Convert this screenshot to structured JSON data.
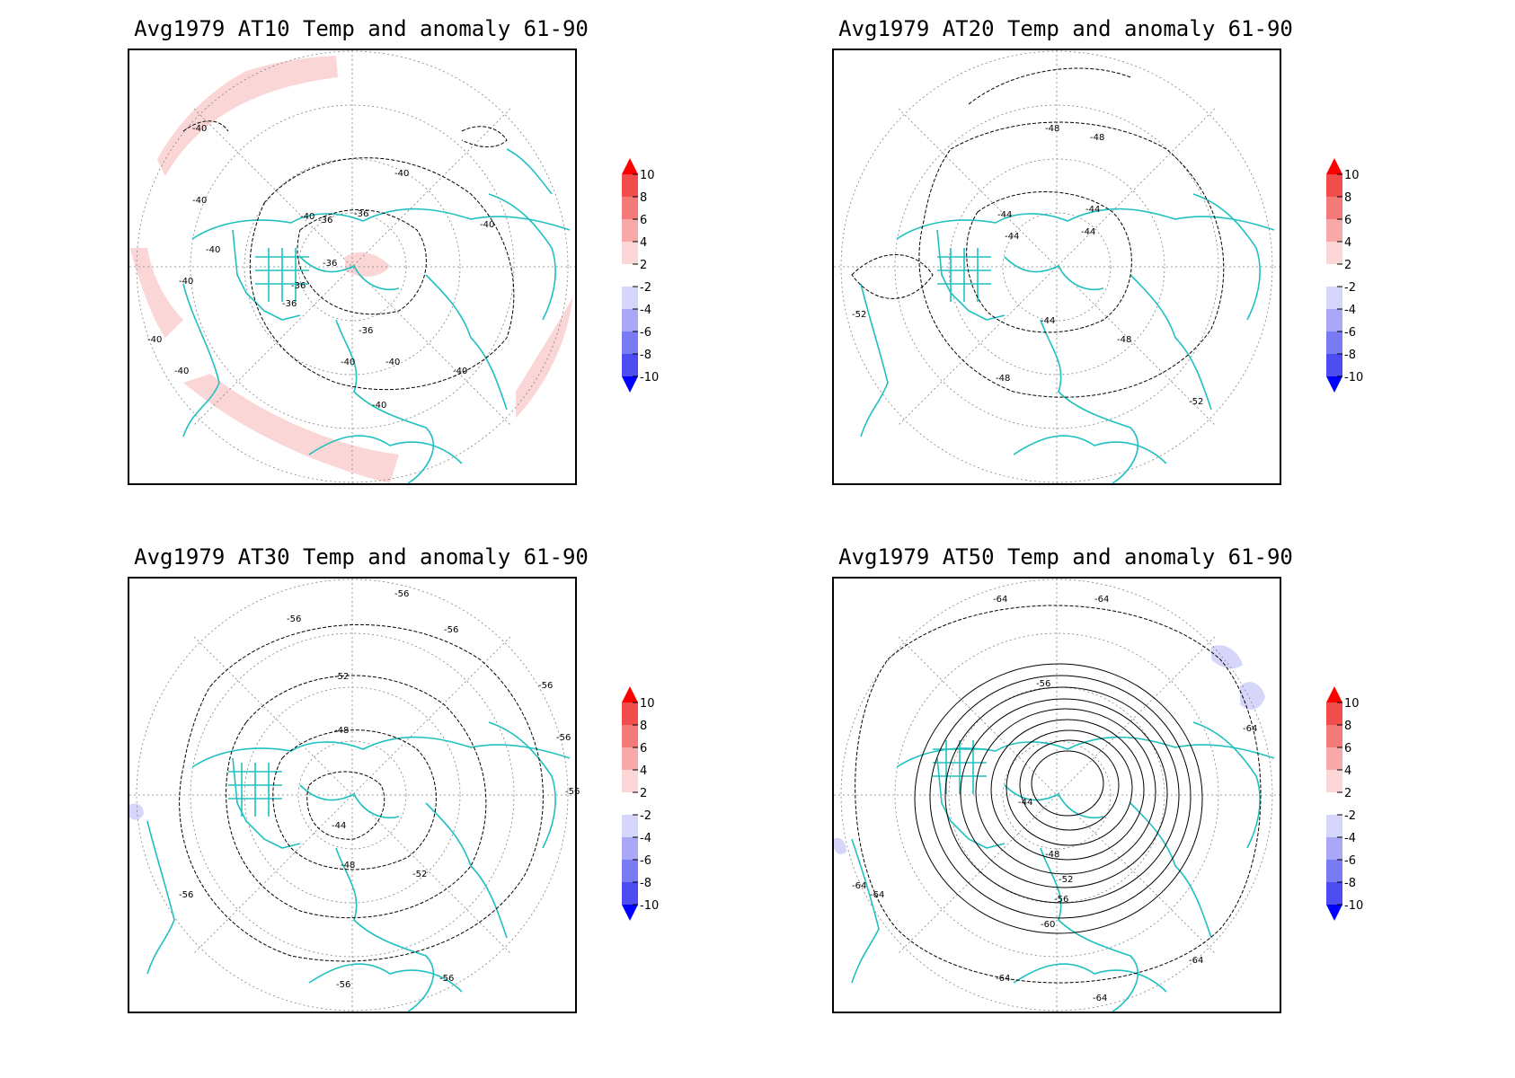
{
  "figure": {
    "panels": [
      {
        "id": "at10",
        "title": "Avg1979 AT10 Temp and anomaly 61-90",
        "contour_labels": [
          "-40",
          "-40",
          "-40",
          "-40",
          "-36",
          "-36",
          "-36",
          "-36",
          "-36",
          "-36",
          "-40",
          "-40",
          "-40",
          "-40",
          "-40",
          "-40",
          "-40",
          "-40",
          "-40"
        ],
        "anomaly_regions": [
          "positive-2-4"
        ]
      },
      {
        "id": "at20",
        "title": "Avg1979 AT20 Temp and anomaly 61-90",
        "contour_labels": [
          "-48",
          "-48",
          "-44",
          "-44",
          "-44",
          "-44",
          "-44",
          "-48",
          "-48",
          "-52",
          "-52"
        ],
        "anomaly_regions": []
      },
      {
        "id": "at30",
        "title": "Avg1979 AT30 Temp and anomaly 61-90",
        "contour_labels": [
          "-56",
          "-56",
          "-56",
          "-52",
          "-48",
          "-44",
          "-48",
          "-52",
          "-56",
          "-56",
          "-56",
          "-56",
          "-56",
          "-56"
        ],
        "anomaly_regions": [
          "negative-2-4"
        ]
      },
      {
        "id": "at50",
        "title": "Avg1979 AT50 Temp and anomaly 61-90",
        "contour_labels": [
          "-64",
          "-64",
          "-56",
          "-44",
          "-48",
          "-52",
          "-56",
          "-60",
          "-64",
          "-64",
          "-64",
          "-64",
          "-64",
          "-64"
        ],
        "anomaly_regions": [
          "negative-2-4"
        ]
      }
    ],
    "colorbar": {
      "ticks": [
        "10",
        "8",
        "6",
        "4",
        "2",
        "-2",
        "-4",
        "-6",
        "-8",
        "-10"
      ],
      "colors": [
        "#f21a1a",
        "#f24d4d",
        "#f47a7a",
        "#f7a8a8",
        "#fbd6d6",
        "#ffffff",
        "#d6d6fb",
        "#a8a8f7",
        "#7a7af4",
        "#4d4df2",
        "#1a1af2"
      ],
      "arrow_top_color": "#ff0000",
      "arrow_bottom_color": "#0000ff"
    },
    "colors": {
      "coastline": "#20c0c0",
      "contour": "#000000",
      "graticule": "#808080",
      "positive_anomaly_fill": "#fbd6d6",
      "negative_anomaly_fill": "#d6d6fb"
    }
  }
}
